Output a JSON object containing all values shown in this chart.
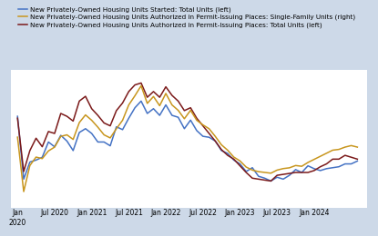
{
  "legend": [
    {
      "label": "New Privately-Owned Housing Units Started: Total Units (left)",
      "color": "#4472c4"
    },
    {
      "label": "New Privately-Owned Housing Units Authorized in Permit-Issuing Places: Single-Family Units (right)",
      "color": "#c8961e"
    },
    {
      "label": "New Privately-Owned Housing Units Authorized in Permit-Issuing Places: Total Units (left)",
      "color": "#7b1a1a"
    }
  ],
  "background_color": "#cdd9e8",
  "plot_background": "#ffffff",
  "grid_color": "#e0e8f0",
  "starts_data": [
    1560,
    900,
    1080,
    1100,
    1130,
    1290,
    1240,
    1360,
    1300,
    1200,
    1390,
    1430,
    1380,
    1290,
    1290,
    1250,
    1450,
    1420,
    1540,
    1650,
    1720,
    1590,
    1640,
    1570,
    1680,
    1570,
    1550,
    1430,
    1520,
    1410,
    1350,
    1340,
    1300,
    1200,
    1170,
    1100,
    1060,
    980,
    1020,
    930,
    910,
    880,
    920,
    900,
    940,
    1000,
    970,
    1040,
    1010,
    990,
    1010,
    1020,
    1030,
    1060,
    1060,
    1090
  ],
  "permits_total_data": [
    1540,
    980,
    1200,
    1330,
    1240,
    1400,
    1380,
    1590,
    1560,
    1510,
    1720,
    1770,
    1640,
    1570,
    1490,
    1460,
    1620,
    1700,
    1820,
    1890,
    1910,
    1760,
    1820,
    1760,
    1870,
    1780,
    1720,
    1620,
    1650,
    1540,
    1460,
    1380,
    1300,
    1210,
    1150,
    1110,
    1040,
    970,
    910,
    900,
    890,
    880,
    940,
    950,
    960,
    970,
    970,
    970,
    990,
    1030,
    1060,
    1110,
    1110,
    1150,
    1130,
    1110
  ],
  "permits_sf_data": [
    1220,
    510,
    850,
    960,
    940,
    1040,
    1090,
    1230,
    1250,
    1190,
    1410,
    1510,
    1440,
    1350,
    1250,
    1210,
    1330,
    1440,
    1640,
    1760,
    1890,
    1660,
    1750,
    1630,
    1790,
    1640,
    1570,
    1460,
    1570,
    1440,
    1380,
    1330,
    1230,
    1120,
    1050,
    960,
    910,
    830,
    790,
    770,
    760,
    750,
    790,
    810,
    820,
    850,
    840,
    890,
    930,
    970,
    1010,
    1050,
    1060,
    1090,
    1110,
    1090
  ],
  "n_points": 56,
  "ylim_left": [
    600,
    2050
  ],
  "ylim_right": [
    300,
    2100
  ],
  "line_width": 1.1,
  "legend_fontsize": 5.2,
  "tick_fontsize": 5.5,
  "tick_positions": [
    0,
    6,
    12,
    18,
    24,
    30,
    36,
    42,
    48,
    54
  ],
  "tick_labels": [
    "Jan\n2020",
    "Jul 2020",
    "Jan 2021",
    "Jul 2021",
    "Jan 2022",
    "Jul 2022",
    "Jan 2023",
    "Jul 2023",
    "Jan 2024",
    ""
  ]
}
